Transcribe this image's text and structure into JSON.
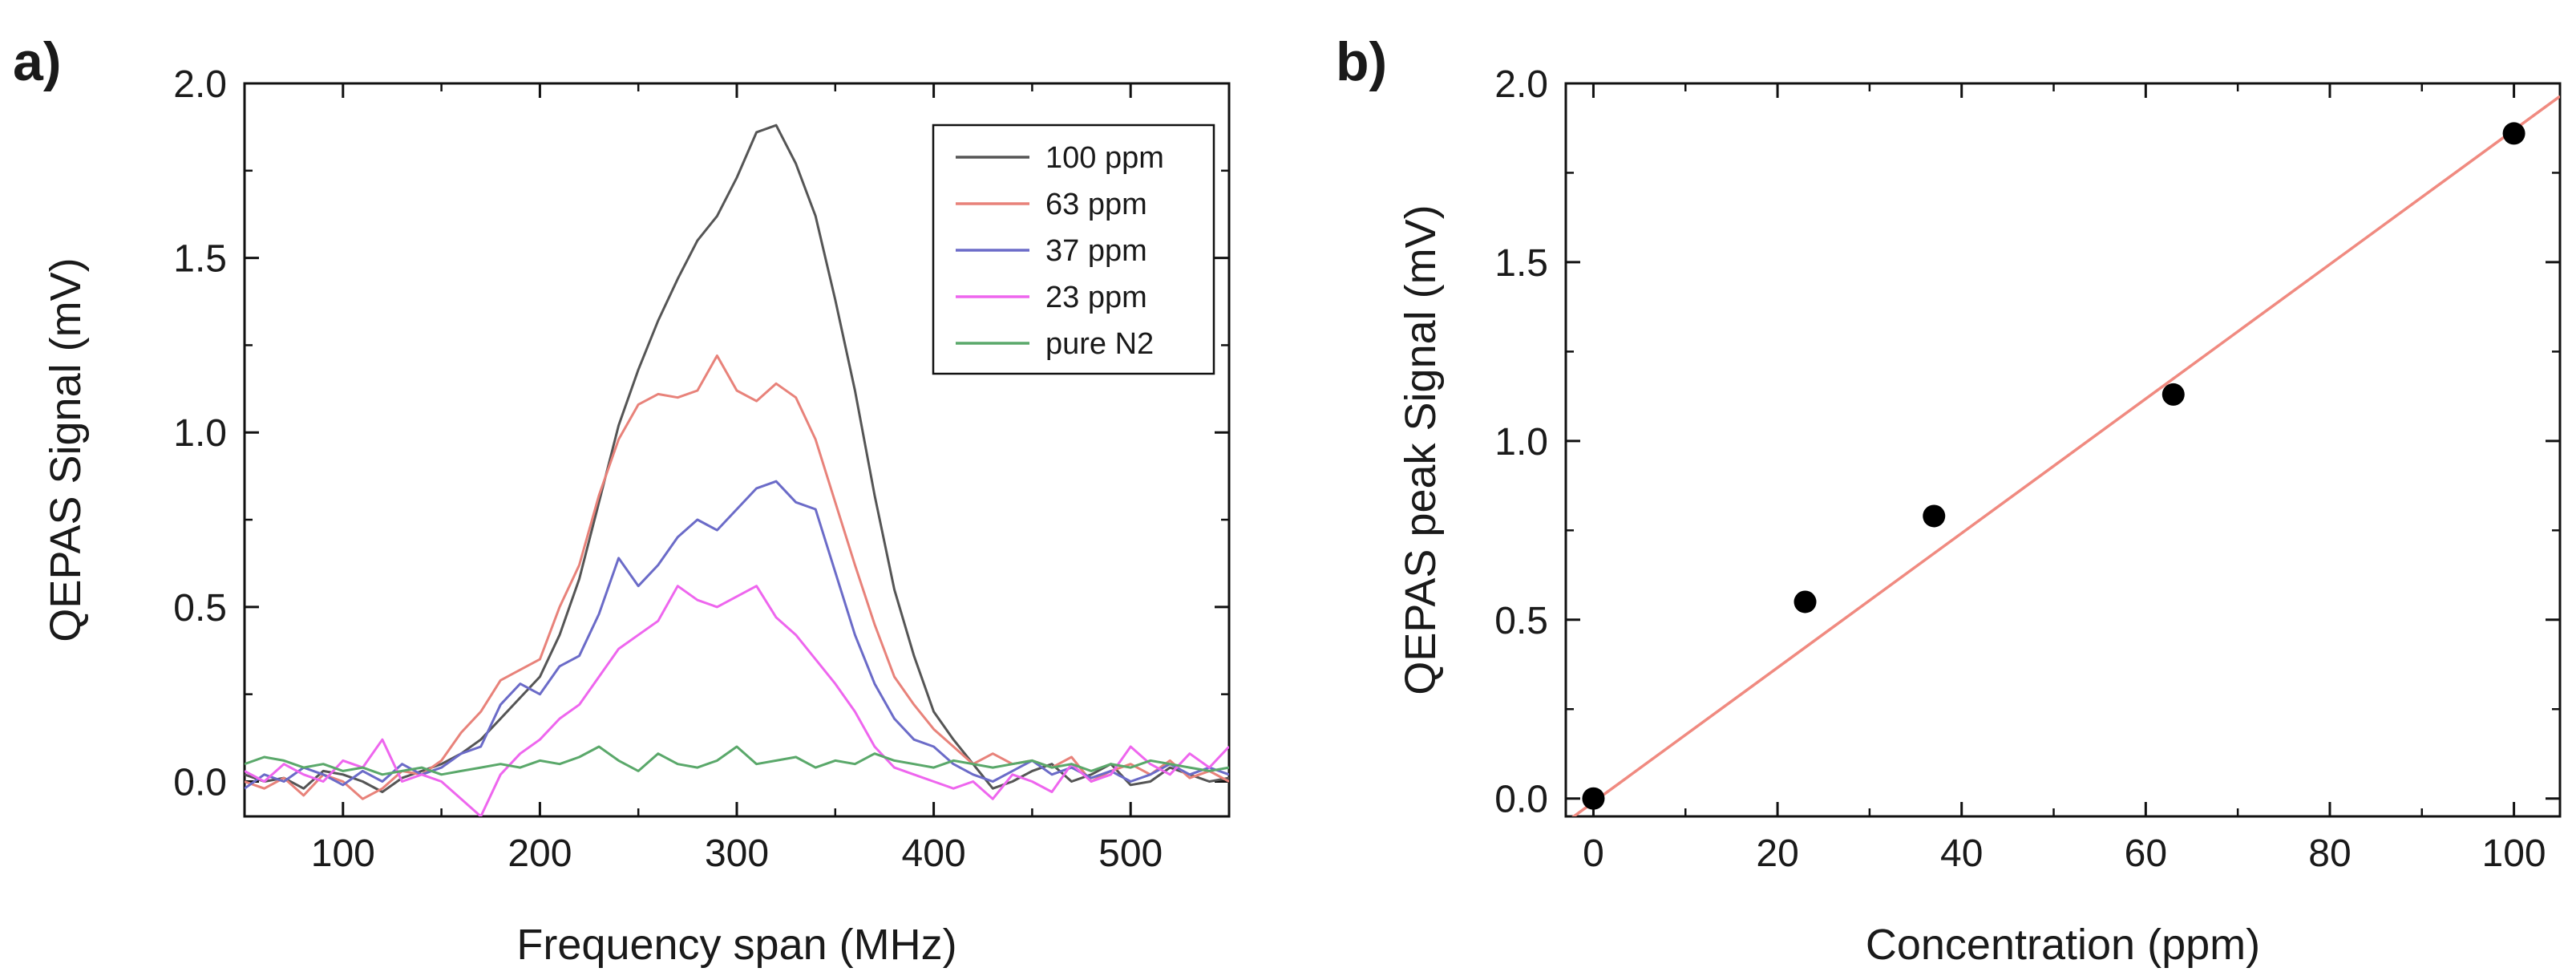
{
  "chart_data": [
    {
      "type": "line",
      "panel_label": "a)",
      "xlabel": "Frequency span (MHz)",
      "ylabel": "QEPAS Signal (mV)",
      "xlim": [
        50,
        550
      ],
      "ylim": [
        -0.1,
        2.0
      ],
      "xticks": [
        100,
        200,
        300,
        400,
        500
      ],
      "yticks": [
        0.0,
        0.5,
        1.0,
        1.5,
        2.0
      ],
      "ytick_labels": [
        "0.0",
        "0.5",
        "1.0",
        "1.5",
        "2.0"
      ],
      "legend_position": "top-right",
      "series": [
        {
          "name": "100 ppm",
          "color": "#555555",
          "x": [
            50,
            60,
            70,
            80,
            90,
            100,
            110,
            120,
            130,
            140,
            150,
            160,
            170,
            180,
            190,
            200,
            210,
            220,
            230,
            240,
            250,
            260,
            270,
            280,
            290,
            300,
            310,
            320,
            330,
            340,
            350,
            360,
            370,
            380,
            390,
            400,
            410,
            420,
            430,
            440,
            450,
            460,
            470,
            480,
            490,
            500,
            510,
            520,
            530,
            540,
            550
          ],
          "y": [
            0.02,
            0.0,
            0.01,
            -0.02,
            0.03,
            0.02,
            0.0,
            -0.03,
            0.01,
            0.03,
            0.05,
            0.08,
            0.12,
            0.18,
            0.24,
            0.3,
            0.42,
            0.58,
            0.8,
            1.02,
            1.18,
            1.32,
            1.44,
            1.55,
            1.62,
            1.73,
            1.86,
            1.88,
            1.77,
            1.62,
            1.38,
            1.12,
            0.82,
            0.55,
            0.36,
            0.2,
            0.12,
            0.05,
            -0.02,
            0.0,
            0.03,
            0.05,
            0.0,
            0.02,
            0.05,
            -0.01,
            0.0,
            0.04,
            0.02,
            0.0,
            0.01
          ]
        },
        {
          "name": "63 ppm",
          "color": "#e8827a",
          "x": [
            50,
            60,
            70,
            80,
            90,
            100,
            110,
            120,
            130,
            140,
            150,
            160,
            170,
            180,
            190,
            200,
            210,
            220,
            230,
            240,
            250,
            260,
            270,
            280,
            290,
            300,
            310,
            320,
            330,
            340,
            350,
            360,
            370,
            380,
            390,
            400,
            410,
            420,
            430,
            440,
            450,
            460,
            470,
            480,
            490,
            500,
            510,
            520,
            530,
            540,
            550
          ],
          "y": [
            0.0,
            -0.02,
            0.01,
            -0.04,
            0.02,
            0.0,
            -0.05,
            -0.02,
            0.03,
            0.02,
            0.06,
            0.14,
            0.2,
            0.29,
            0.32,
            0.35,
            0.5,
            0.62,
            0.82,
            0.98,
            1.08,
            1.11,
            1.1,
            1.12,
            1.22,
            1.12,
            1.09,
            1.14,
            1.1,
            0.98,
            0.8,
            0.62,
            0.45,
            0.3,
            0.22,
            0.15,
            0.1,
            0.05,
            0.08,
            0.05,
            0.06,
            0.04,
            0.07,
            0.0,
            0.03,
            0.05,
            0.02,
            0.06,
            0.01,
            0.03,
            0.0
          ]
        },
        {
          "name": "37 ppm",
          "color": "#6b6bc8",
          "x": [
            50,
            60,
            70,
            80,
            90,
            100,
            110,
            120,
            130,
            140,
            150,
            160,
            170,
            180,
            190,
            200,
            210,
            220,
            230,
            240,
            250,
            260,
            270,
            280,
            290,
            300,
            310,
            320,
            330,
            340,
            350,
            360,
            370,
            380,
            390,
            400,
            410,
            420,
            430,
            440,
            450,
            460,
            470,
            480,
            490,
            500,
            510,
            520,
            530,
            540,
            550
          ],
          "y": [
            -0.02,
            0.02,
            0.0,
            0.04,
            0.02,
            -0.01,
            0.03,
            0.0,
            0.05,
            0.02,
            0.04,
            0.08,
            0.1,
            0.22,
            0.28,
            0.25,
            0.33,
            0.36,
            0.48,
            0.64,
            0.56,
            0.62,
            0.7,
            0.75,
            0.72,
            0.78,
            0.84,
            0.86,
            0.8,
            0.78,
            0.6,
            0.42,
            0.28,
            0.18,
            0.12,
            0.1,
            0.05,
            0.02,
            0.0,
            0.03,
            0.06,
            0.02,
            0.04,
            0.01,
            0.03,
            0.0,
            0.02,
            0.05,
            0.02,
            0.04,
            0.02
          ]
        },
        {
          "name": "23 ppm",
          "color": "#ee66ee",
          "x": [
            50,
            60,
            70,
            80,
            90,
            100,
            110,
            120,
            130,
            140,
            150,
            160,
            170,
            180,
            190,
            200,
            210,
            220,
            230,
            240,
            250,
            260,
            270,
            280,
            290,
            300,
            310,
            320,
            330,
            340,
            350,
            360,
            370,
            380,
            390,
            400,
            410,
            420,
            430,
            440,
            450,
            460,
            470,
            480,
            490,
            500,
            510,
            520,
            530,
            540,
            550
          ],
          "y": [
            0.03,
            0.0,
            0.05,
            0.02,
            0.0,
            0.06,
            0.04,
            0.12,
            0.0,
            0.02,
            0.0,
            -0.05,
            -0.1,
            0.02,
            0.08,
            0.12,
            0.18,
            0.22,
            0.3,
            0.38,
            0.42,
            0.46,
            0.56,
            0.52,
            0.5,
            0.53,
            0.56,
            0.47,
            0.42,
            0.35,
            0.28,
            0.2,
            0.1,
            0.04,
            0.02,
            0.0,
            -0.02,
            0.0,
            -0.05,
            0.02,
            0.0,
            -0.03,
            0.05,
            0.0,
            0.02,
            0.1,
            0.05,
            0.02,
            0.08,
            0.04,
            0.1
          ]
        },
        {
          "name": "pure N2",
          "color": "#5aa86a",
          "x": [
            50,
            60,
            70,
            80,
            90,
            100,
            110,
            120,
            130,
            140,
            150,
            160,
            170,
            180,
            190,
            200,
            210,
            220,
            230,
            240,
            250,
            260,
            270,
            280,
            290,
            300,
            310,
            320,
            330,
            340,
            350,
            360,
            370,
            380,
            390,
            400,
            410,
            420,
            430,
            440,
            450,
            460,
            470,
            480,
            490,
            500,
            510,
            520,
            530,
            540,
            550
          ],
          "y": [
            0.05,
            0.07,
            0.06,
            0.04,
            0.05,
            0.03,
            0.04,
            0.02,
            0.03,
            0.04,
            0.02,
            0.03,
            0.04,
            0.05,
            0.04,
            0.06,
            0.05,
            0.07,
            0.1,
            0.06,
            0.03,
            0.08,
            0.05,
            0.04,
            0.06,
            0.1,
            0.05,
            0.06,
            0.07,
            0.04,
            0.06,
            0.05,
            0.08,
            0.06,
            0.05,
            0.04,
            0.06,
            0.05,
            0.04,
            0.05,
            0.06,
            0.04,
            0.05,
            0.03,
            0.05,
            0.04,
            0.06,
            0.05,
            0.04,
            0.03,
            0.04
          ]
        }
      ]
    },
    {
      "type": "scatter",
      "panel_label": "b)",
      "xlabel": "Concentration (ppm)",
      "ylabel": "QEPAS peak Signal (mV)",
      "xlim": [
        -3,
        105
      ],
      "ylim": [
        -0.05,
        2.0
      ],
      "xticks": [
        0,
        20,
        40,
        60,
        80,
        100
      ],
      "yticks": [
        0.0,
        0.5,
        1.0,
        1.5,
        2.0
      ],
      "ytick_labels": [
        "0.0",
        "0.5",
        "1.0",
        "1.5",
        "2.0"
      ],
      "points": {
        "color": "#000000",
        "x": [
          0,
          23,
          37,
          63,
          100
        ],
        "y": [
          0.0,
          0.55,
          0.79,
          1.13,
          1.86
        ]
      },
      "fit_line": {
        "color": "#f08a80",
        "slope": 0.0188,
        "intercept": -0.01
      }
    }
  ]
}
